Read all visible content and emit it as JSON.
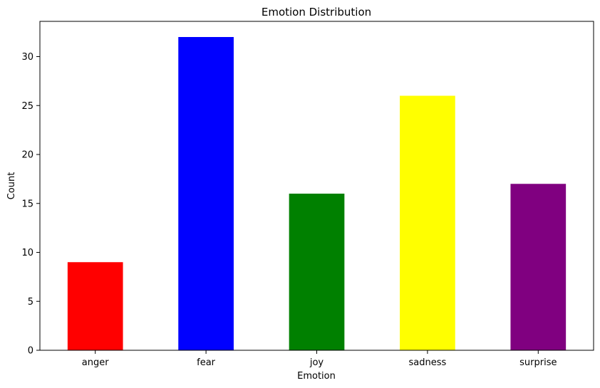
{
  "chart_data": {
    "type": "bar",
    "title": "Emotion Distribution",
    "xlabel": "Emotion",
    "ylabel": "Count",
    "categories": [
      "anger",
      "fear",
      "joy",
      "sadness",
      "surprise"
    ],
    "values": [
      9,
      32,
      16,
      26,
      17
    ],
    "colors": [
      "#ff0000",
      "#0000ff",
      "#008000",
      "#ffff00",
      "#800080"
    ],
    "ylim": [
      0,
      33.6
    ],
    "yticks": [
      0,
      5,
      10,
      15,
      20,
      25,
      30
    ],
    "grid": false,
    "legend": "none"
  }
}
